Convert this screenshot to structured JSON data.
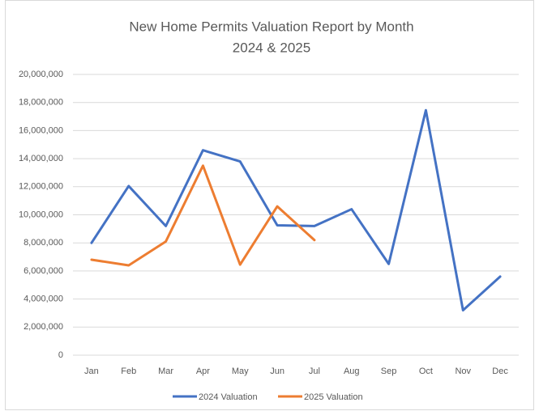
{
  "chart_data": {
    "type": "line",
    "title": "New Home Permits Valuation Report by Month",
    "subtitle": "2024 & 2025",
    "categories": [
      "Jan",
      "Feb",
      "Mar",
      "Apr",
      "May",
      "Jun",
      "Jul",
      "Aug",
      "Sep",
      "Oct",
      "Nov",
      "Dec"
    ],
    "series": [
      {
        "name": "2024 Valuation",
        "color": "#4472c4",
        "values": [
          8000000,
          12050000,
          9200000,
          14600000,
          13800000,
          9250000,
          9200000,
          10400000,
          6500000,
          17450000,
          3200000,
          5600000
        ]
      },
      {
        "name": "2025 Valuation",
        "color": "#ed7d31",
        "values": [
          6800000,
          6400000,
          8100000,
          13500000,
          6450000,
          10600000,
          8200000,
          null,
          null,
          null,
          null,
          null
        ]
      }
    ],
    "ylim": [
      0,
      20000000
    ],
    "yticks": [
      0,
      {
        "value": 2000000,
        "label": "2,000,000"
      },
      {
        "value": 4000000,
        "label": "4,000,000"
      },
      {
        "value": 6000000,
        "label": "6,000,000"
      },
      {
        "value": 8000000,
        "label": "8,000,000"
      },
      {
        "value": 10000000,
        "label": "10,000,000"
      },
      {
        "value": 12000000,
        "label": "12,000,000"
      },
      {
        "value": 14000000,
        "label": "14,000,000"
      },
      {
        "value": 16000000,
        "label": "16,000,000"
      },
      {
        "value": 18000000,
        "label": "18,000,000"
      },
      {
        "value": 20000000,
        "label": "20,000,000"
      }
    ],
    "grid": true,
    "legend": "bottom"
  }
}
